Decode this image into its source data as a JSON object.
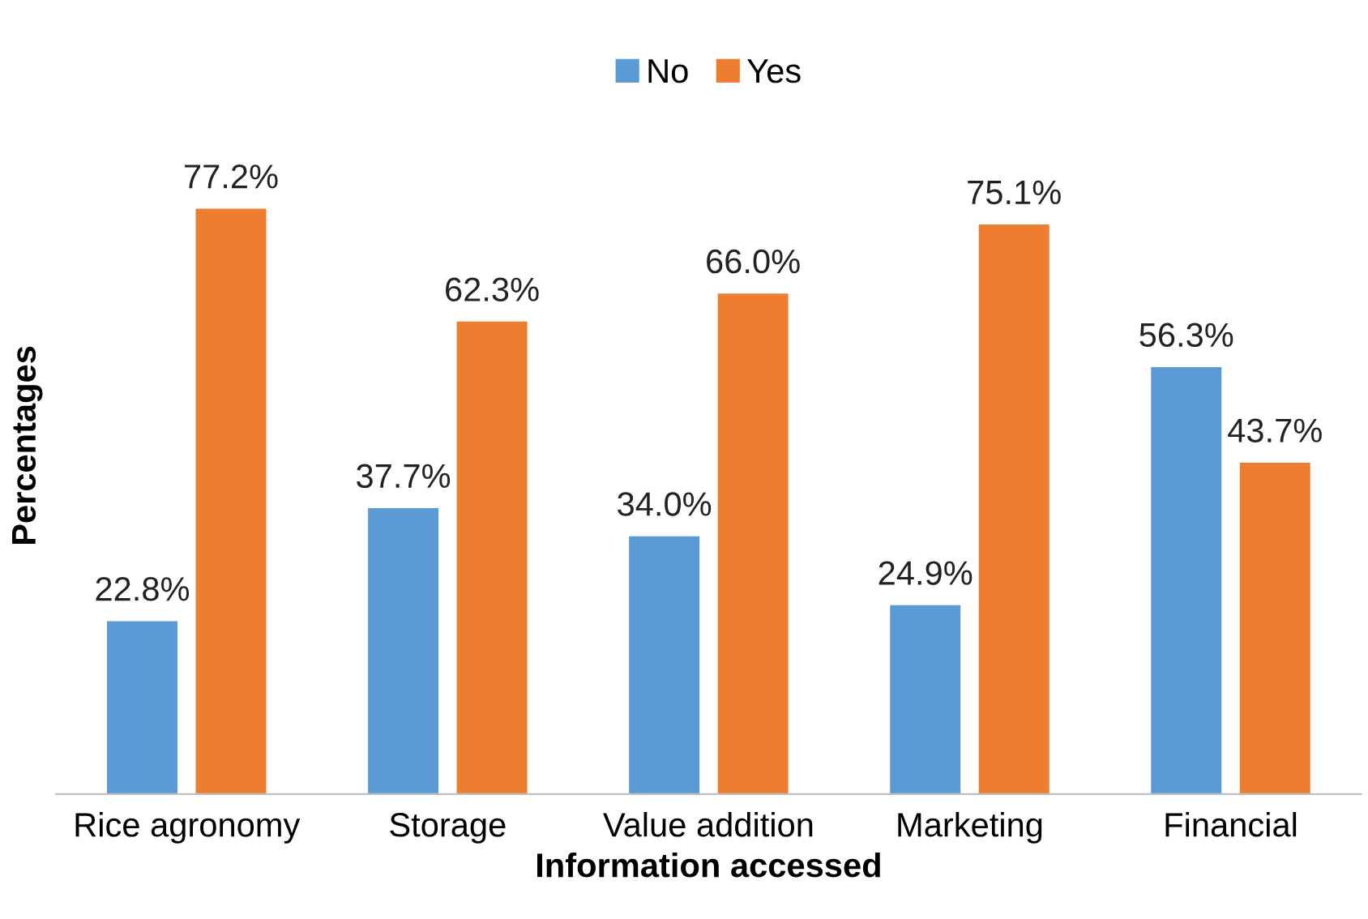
{
  "chart_data": {
    "type": "bar",
    "xlabel": "Information accessed",
    "ylabel": "Percentages",
    "categories": [
      "Rice agronomy",
      "Storage",
      "Value addition",
      "Marketing",
      "Financial"
    ],
    "series": [
      {
        "name": "No",
        "color": "#5b9bd5",
        "values": [
          22.8,
          37.7,
          34.0,
          24.9,
          56.3
        ],
        "value_labels": [
          "22.8%",
          "37.7%",
          "34.0%",
          "24.9%",
          "56.3%"
        ]
      },
      {
        "name": "Yes",
        "color": "#ed7d31",
        "values": [
          77.2,
          62.3,
          66.0,
          75.1,
          43.7
        ],
        "value_labels": [
          "77.2%",
          "62.3%",
          "66.0%",
          "75.1%",
          "43.7%"
        ]
      }
    ],
    "legend": "top",
    "grid": false,
    "tick_labels": "x"
  }
}
